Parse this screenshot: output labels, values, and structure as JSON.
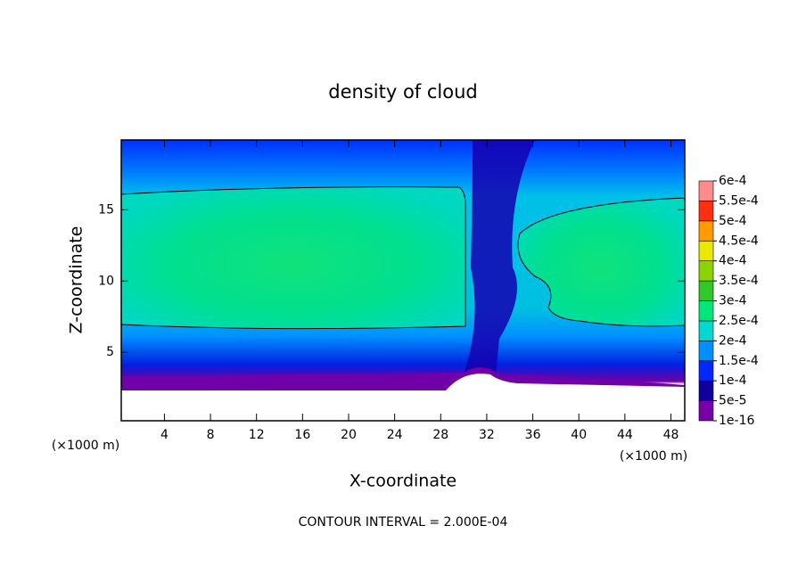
{
  "chart_data": {
    "type": "contour",
    "title": "density of cloud",
    "x_label": "X-coordinate",
    "y_label": "Z-coordinate",
    "x_unit": "(×1000 m)",
    "annotation": "CONTOUR INTERVAL = 2.000E-04",
    "xlim": [
      0.25,
      49.2
    ],
    "ylim": [
      0.2,
      19.9
    ],
    "xticks": [
      4,
      8,
      12,
      16,
      20,
      24,
      28,
      32,
      36,
      40,
      44,
      48
    ],
    "yticks": [
      5,
      10,
      15
    ],
    "colorbar": {
      "levels": [
        {
          "value": 1e-16,
          "label": "1e-16"
        },
        {
          "value": 5e-05,
          "label": "5e-5"
        },
        {
          "value": 0.0001,
          "label": "1e-4"
        },
        {
          "value": 0.00015,
          "label": "1.5e-4"
        },
        {
          "value": 0.0002,
          "label": "2e-4"
        },
        {
          "value": 0.00025,
          "label": "2.5e-4"
        },
        {
          "value": 0.0003,
          "label": "3e-4"
        },
        {
          "value": 0.00035,
          "label": "3.5e-4"
        },
        {
          "value": 0.0004,
          "label": "4e-4"
        },
        {
          "value": 0.00045,
          "label": "4.5e-4"
        },
        {
          "value": 0.0005,
          "label": "5e-4"
        },
        {
          "value": 0.00055,
          "label": "5.5e-4"
        },
        {
          "value": 0.0006,
          "label": "6e-4"
        }
      ],
      "colors": [
        "#7800a8",
        "#10009c",
        "#0028ff",
        "#0090ff",
        "#00d8d0",
        "#00e67a",
        "#30c828",
        "#8cd400",
        "#e8e800",
        "#ff9a00",
        "#ff3010",
        "#ff8c8c"
      ]
    }
  }
}
